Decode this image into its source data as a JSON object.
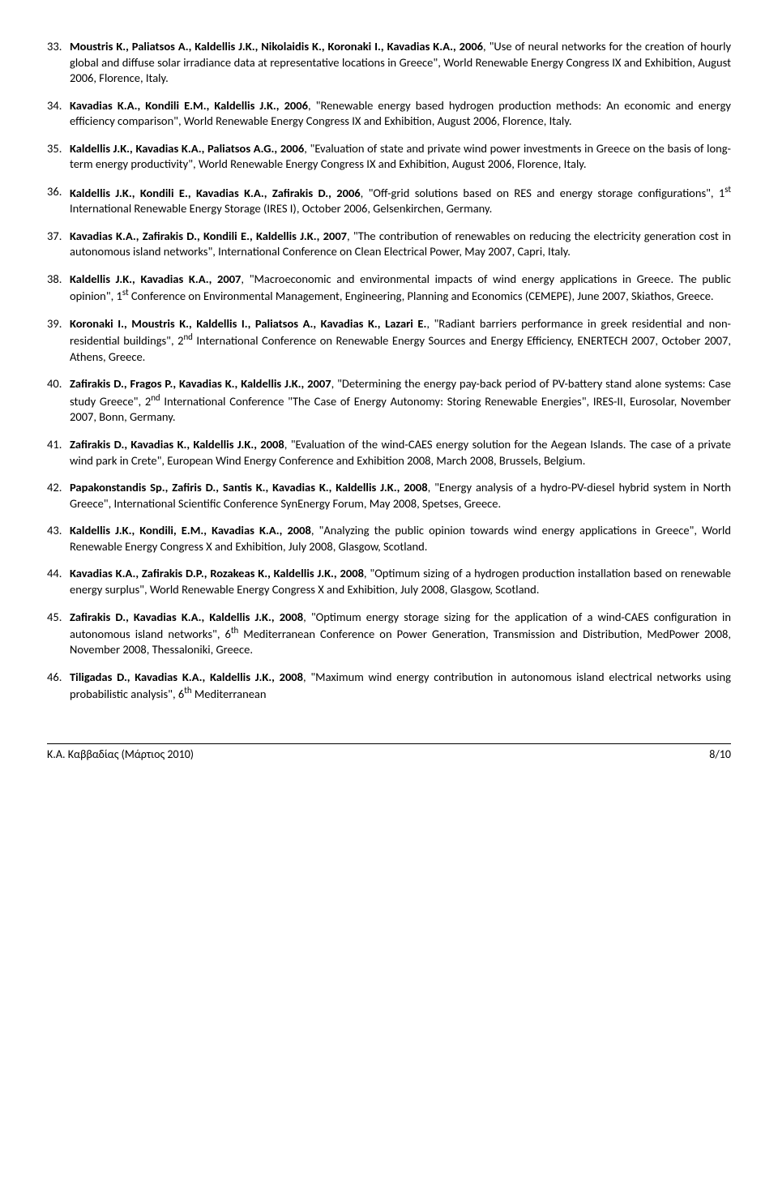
{
  "references": [
    {
      "n": "33.",
      "authors": "Moustris K., Paliatsos A., Kaldellis J.K., Nikolaidis K., Koronaki I., Kavadias K.A., 2006",
      "rest": ", \"Use of neural networks for the creation of hourly global and diffuse solar irradiance data at representative locations in Greece\", World Renewable Energy Congress IX and Exhibition, August 2006, Florence, Italy."
    },
    {
      "n": "34.",
      "authors": "Kavadias K.A., Kondili E.M., Kaldellis J.K., 2006",
      "rest": ", \"Renewable energy based hydrogen production methods: An economic and energy efficiency comparison\", World Renewable Energy Congress IX and Exhibition, August 2006, Florence, Italy."
    },
    {
      "n": "35.",
      "authors": "Kaldellis J.K., Kavadias K.A., Paliatsos A.G., 2006",
      "rest": ", \"Evaluation of state and private wind power investments in Greece on the basis of long-term energy productivity\", World Renewable Energy Congress IX and Exhibition, August 2006, Florence, Italy."
    },
    {
      "n": "36.",
      "authors": "Kaldellis J.K., Kondili E., Kavadias K.A., Zafirakis D., 2006",
      "rest": ", \"Off-grid solutions based on RES and energy storage configurations\", 1<sup>st</sup> International Renewable Energy Storage (IRES I), October 2006, Gelsenkirchen, Germany."
    },
    {
      "n": "37.",
      "authors": "Kavadias K.A., Zafirakis D., Kondili E., Kaldellis J.K., 2007",
      "rest": ", \"The contribution of renewables on reducing the electricity generation cost in autonomous island networks\", International Conference on Clean Electrical Power, May 2007, Capri, Italy."
    },
    {
      "n": "38.",
      "authors": "Kaldellis J.K., Kavadias K.A., 2007",
      "rest": ", \"Macroeconomic and environmental impacts of wind energy applications in Greece. The public opinion\", 1<sup>st</sup> Conference on Environmental Management, Engineering, Planning and Economics (CEMEPE), June 2007, Skiathos, Greece."
    },
    {
      "n": "39.",
      "authors": "Koronaki I., Moustris K., Kaldellis I., Paliatsos A., Kavadias K., Lazari E.",
      "rest": ", \"Radiant barriers performance in greek residential and non-residential buildings\", 2<sup>nd</sup> International Conference on Renewable Energy Sources and Energy Efficiency, ENERTECH 2007, October 2007, Athens, Greece."
    },
    {
      "n": "40.",
      "authors": "Zafirakis D., Fragos P., Kavadias K., Kaldellis J.K., 2007",
      "rest": ", \"Determining the energy pay-back period of PV-battery stand alone systems: Case study Greece\", 2<sup>nd</sup> International Conference \"The Case of Energy Autonomy: Storing Renewable Energies\", IRES-II, Eurosolar, November 2007, Bonn, Germany."
    },
    {
      "n": "41.",
      "authors": "Zafirakis D., Kavadias K., Kaldellis J.K., 2008",
      "rest": ", \"Evaluation of the wind-CAES energy solution for the Aegean Islands. The case of a private wind park in Crete\", European Wind Energy Conference and Exhibition 2008, March 2008, Brussels, Belgium."
    },
    {
      "n": "42.",
      "authors": "Papakonstandis Sp., Zafiris D., Santis K., Kavadias K., Kaldellis J.K., 2008",
      "rest": ", \"Energy analysis of a hydro-PV-diesel hybrid system in North Greece\", International Scientific Conference SynEnergy Forum, May 2008, Spetses, Greece."
    },
    {
      "n": "43.",
      "authors": "Kaldellis J.K., Kondili, E.M., Kavadias K.A., 2008",
      "rest": ", \"Analyzing the public opinion towards wind energy applications in Greece\", World Renewable Energy Congress X and Exhibition, July 2008, Glasgow, Scotland."
    },
    {
      "n": "44.",
      "authors": "Kavadias K.A., Zafirakis D.P., Rozakeas K., Kaldellis J.K., 2008",
      "rest": ", \"Optimum sizing of a hydrogen production installation based on renewable energy surplus\", World Renewable Energy Congress X and Exhibition, July 2008, Glasgow, Scotland."
    },
    {
      "n": "45.",
      "authors": "Zafirakis D., Kavadias K.A., Kaldellis J.K., 2008",
      "rest": ", \"Optimum energy storage sizing for the application of a wind-CAES configuration in autonomous island networks\", 6<sup>th</sup> Mediterranean Conference on Power Generation, Transmission and Distribution, MedPower 2008, November 2008, Thessaloniki, Greece."
    },
    {
      "n": "46.",
      "authors": "Tiligadas D., Kavadias K.A., Kaldellis J.K., 2008",
      "rest": ", \"Maximum wind energy contribution in autonomous island electrical networks using probabilistic analysis\", 6<sup>th</sup> Mediterranean"
    }
  ],
  "footer": {
    "left": "Κ.Α. Καββαδίας (Μάρτιος 2010)",
    "right": "8/10"
  }
}
